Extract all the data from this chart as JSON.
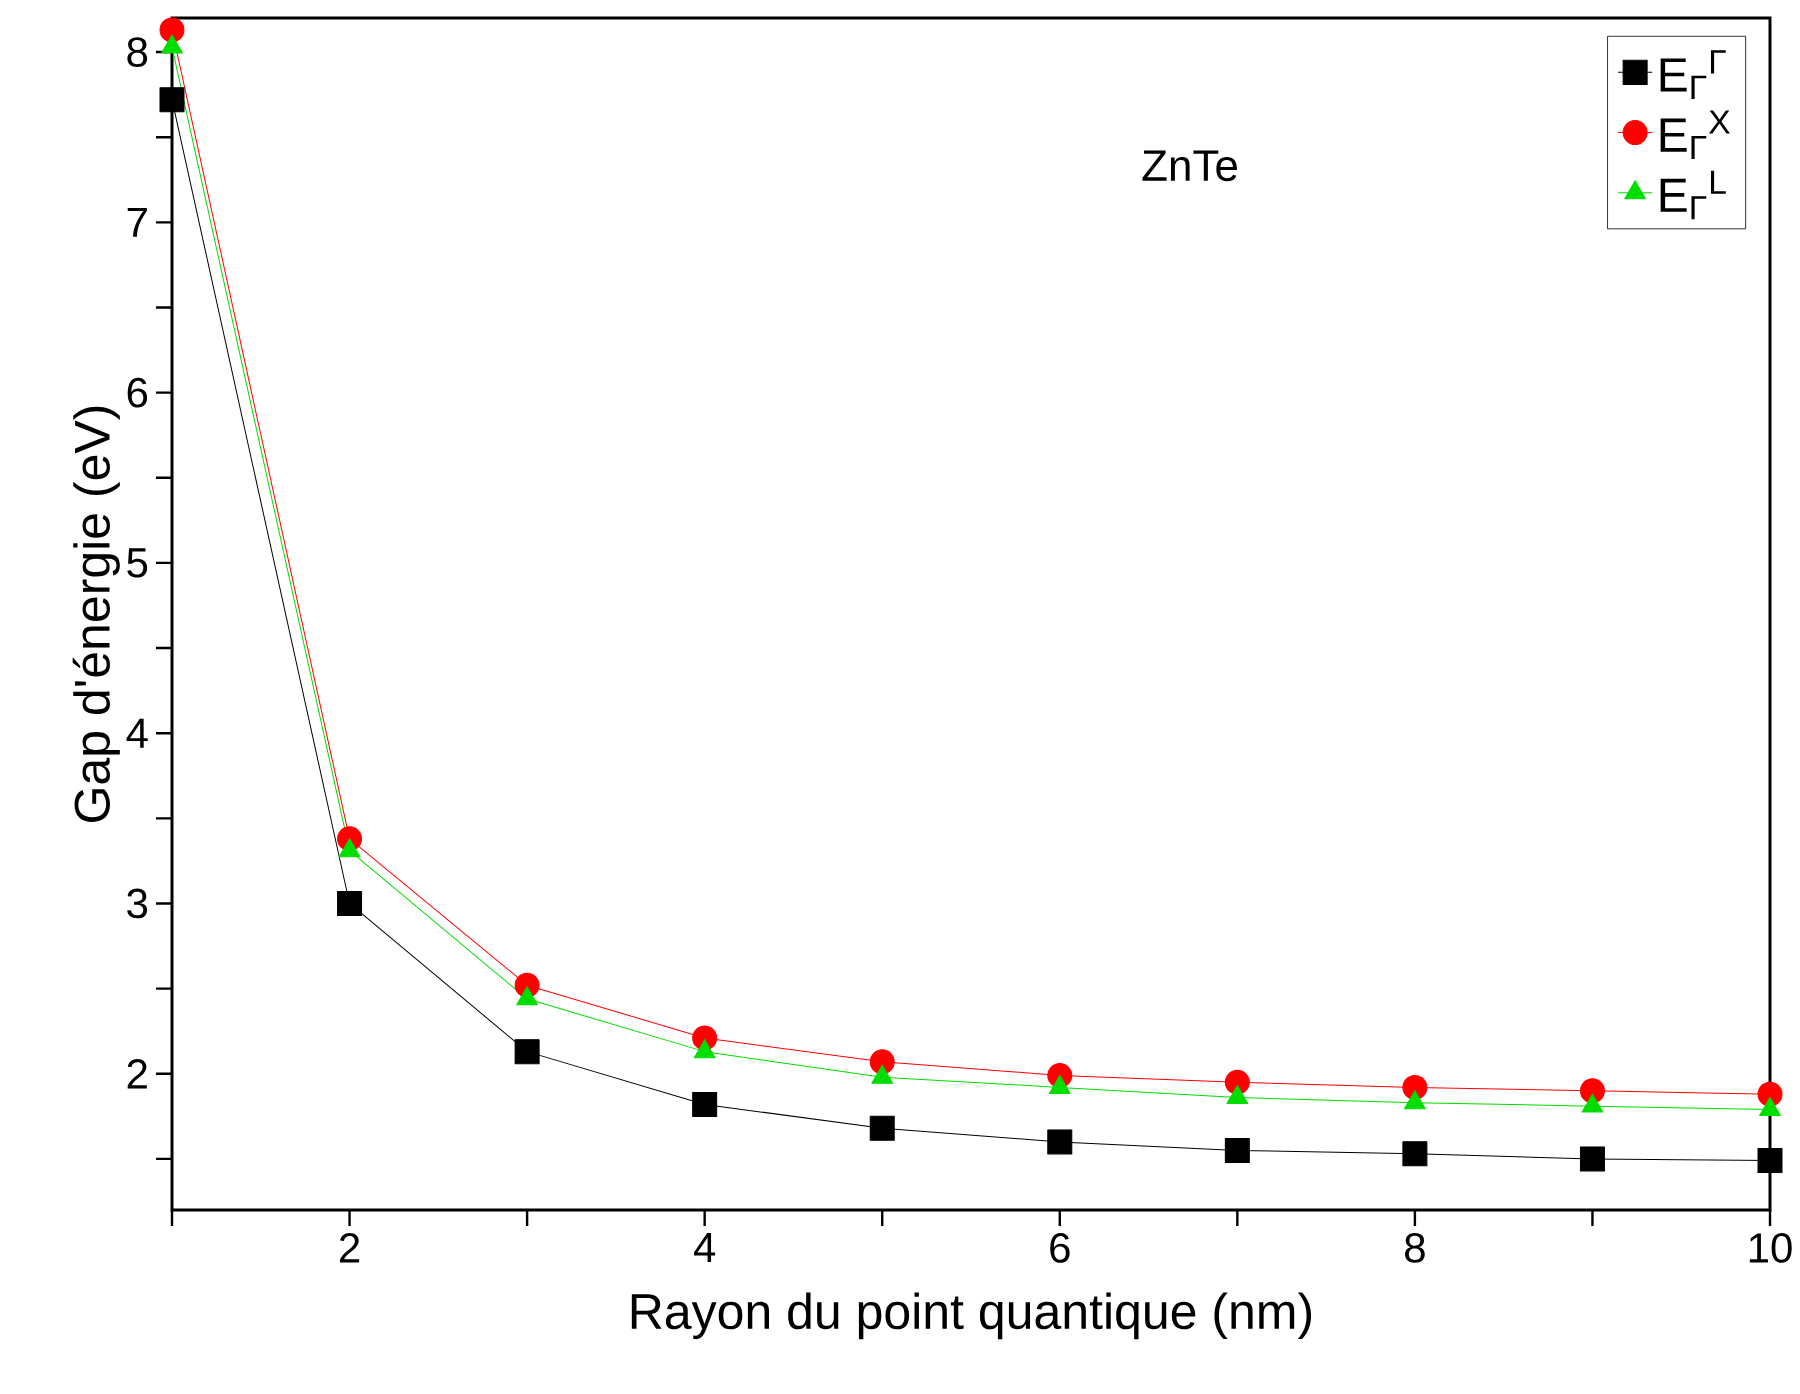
{
  "chart_data": {
    "type": "line",
    "xlabel": "Rayon du point quantique (nm)",
    "ylabel": "Gap d'énergie (eV)",
    "annotations": [
      "ZnTe"
    ],
    "x": [
      1,
      2,
      3,
      4,
      5,
      6,
      7,
      8,
      9,
      10
    ],
    "series": [
      {
        "name": "E$_{Γ}$$^{Γ}$",
        "color": "#000000",
        "marker": "square",
        "values": [
          7.72,
          3.0,
          2.13,
          1.82,
          1.68,
          1.6,
          1.55,
          1.53,
          1.5,
          1.49
        ]
      },
      {
        "name": "E$_{Γ}$$^{X}$",
        "color": "#ff0000",
        "marker": "circle",
        "values": [
          8.13,
          3.38,
          2.52,
          2.21,
          2.07,
          1.99,
          1.95,
          1.92,
          1.9,
          1.88
        ]
      },
      {
        "name": "E$_{Γ}$$^{L}$",
        "color": "#00dd00",
        "marker": "triangle",
        "values": [
          8.03,
          3.31,
          2.44,
          2.13,
          1.98,
          1.92,
          1.86,
          1.83,
          1.81,
          1.79
        ]
      }
    ],
    "xlim": [
      1,
      10
    ],
    "ylim": [
      1.2,
      8.2
    ],
    "xticks": [
      {
        "value": 1,
        "label": null
      },
      2,
      {
        "value": 3,
        "label": null
      },
      4,
      {
        "value": 5,
        "label": null
      },
      6,
      {
        "value": 7,
        "label": null
      },
      8,
      {
        "value": 9,
        "label": null
      },
      10
    ],
    "yticks": [
      {
        "value": 1.5,
        "label": null
      },
      2,
      {
        "value": 2.5,
        "label": null
      },
      3,
      {
        "value": 3.5,
        "label": null
      },
      4,
      {
        "value": 4.5,
        "label": null
      },
      5,
      {
        "value": 5.5,
        "label": null
      },
      6,
      {
        "value": 6.5,
        "label": null
      },
      7,
      {
        "value": 7.5,
        "label": null
      },
      8
    ],
    "grid": false,
    "legend": "top right",
    "line_style": "solid"
  }
}
